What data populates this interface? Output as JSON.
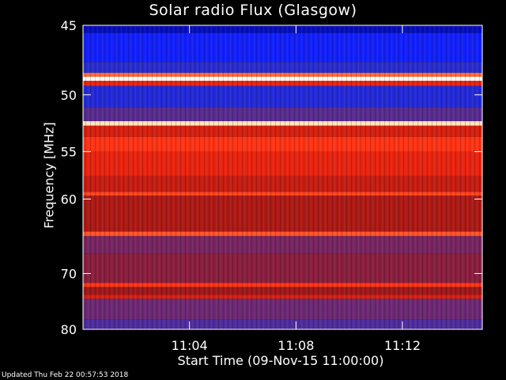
{
  "chart_data": {
    "type": "heatmap",
    "title": "Solar radio Flux (Glasgow)",
    "xlabel": "Start Time (09-Nov-15 11:00:00)",
    "ylabel": "Frequency [MHz]",
    "x_ticks": [
      "11:04",
      "11:08",
      "11:12"
    ],
    "y_ticks": [
      45,
      50,
      55,
      60,
      70,
      80
    ],
    "xlim": [
      "11:00:00",
      "11:15:00"
    ],
    "ylim": [
      45,
      80
    ],
    "y_scale": "reciprocal",
    "colormap": [
      "#000080",
      "#1020ff",
      "#3030c0",
      "#6a2a7a",
      "#a01818",
      "#d82010",
      "#ff2a10",
      "#ff8040",
      "#ffe0b0",
      "#ffffff"
    ],
    "bands": [
      {
        "f_from": 45.0,
        "f_to": 45.5,
        "level": 0.05
      },
      {
        "f_from": 45.5,
        "f_to": 47.5,
        "level": 0.12
      },
      {
        "f_from": 47.5,
        "f_to": 48.3,
        "level": 0.2
      },
      {
        "f_from": 48.3,
        "f_to": 48.6,
        "level": 0.75
      },
      {
        "f_from": 48.6,
        "f_to": 48.9,
        "level": 1.0
      },
      {
        "f_from": 48.9,
        "f_to": 49.3,
        "level": 0.6
      },
      {
        "f_from": 49.3,
        "f_to": 51.0,
        "level": 0.18
      },
      {
        "f_from": 51.0,
        "f_to": 52.2,
        "level": 0.3
      },
      {
        "f_from": 52.2,
        "f_to": 52.6,
        "level": 0.9
      },
      {
        "f_from": 52.6,
        "f_to": 53.6,
        "level": 0.55
      },
      {
        "f_from": 53.6,
        "f_to": 55.0,
        "level": 0.68
      },
      {
        "f_from": 55.0,
        "f_to": 57.5,
        "level": 0.6
      },
      {
        "f_from": 57.5,
        "f_to": 59.2,
        "level": 0.52
      },
      {
        "f_from": 59.2,
        "f_to": 59.6,
        "level": 0.7
      },
      {
        "f_from": 59.6,
        "f_to": 64.0,
        "level": 0.47
      },
      {
        "f_from": 64.0,
        "f_to": 64.6,
        "level": 0.72
      },
      {
        "f_from": 64.6,
        "f_to": 67.0,
        "level": 0.36
      },
      {
        "f_from": 67.0,
        "f_to": 71.5,
        "level": 0.4
      },
      {
        "f_from": 71.5,
        "f_to": 72.2,
        "level": 0.68
      },
      {
        "f_from": 72.2,
        "f_to": 73.5,
        "level": 0.44
      },
      {
        "f_from": 73.5,
        "f_to": 74.2,
        "level": 0.56
      },
      {
        "f_from": 74.2,
        "f_to": 78.0,
        "level": 0.34
      },
      {
        "f_from": 78.0,
        "f_to": 80.0,
        "level": 0.28
      }
    ]
  },
  "footer": {
    "updated": "Updated Thu Feb 22 00:57:53 2018"
  }
}
